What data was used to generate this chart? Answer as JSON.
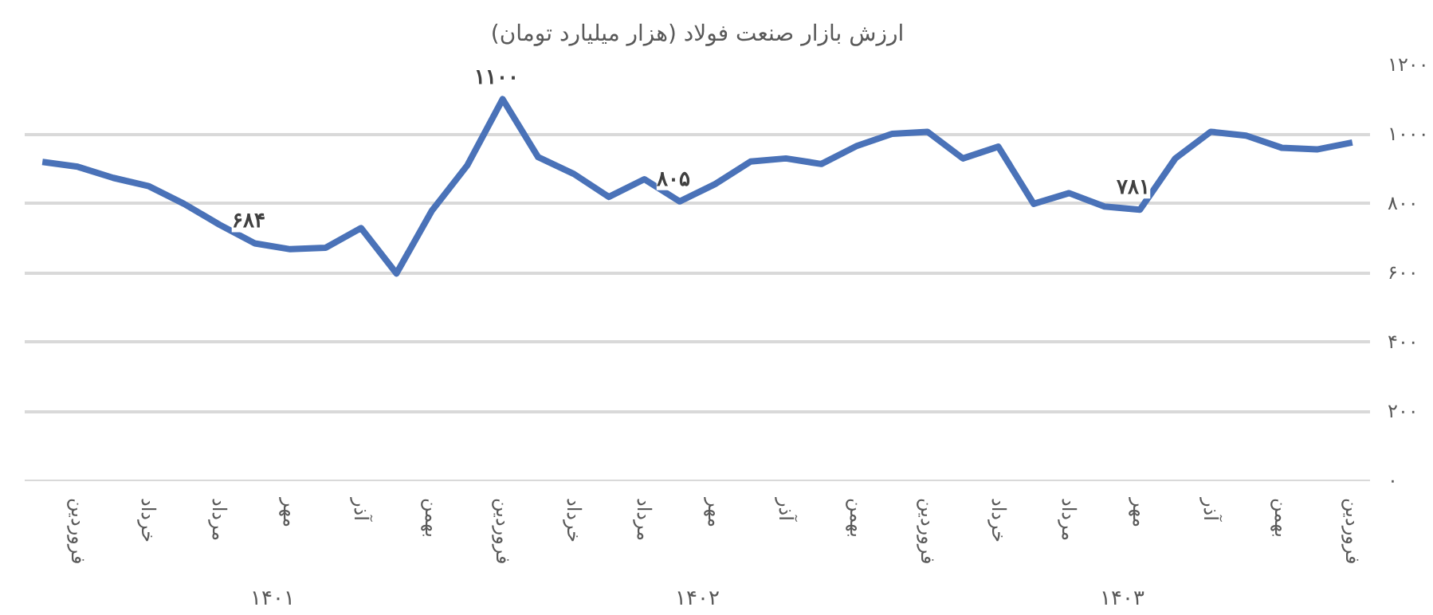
{
  "chart_data": {
    "type": "line",
    "title": "ارزش بازار صنعت فولاد (هزار میلیارد تومان)",
    "categories": [
      null,
      "فروردین",
      null,
      "خرداد",
      null,
      "مرداد",
      null,
      "مهر",
      null,
      "آذر",
      null,
      "بهمن",
      null,
      "فروردین",
      null,
      "خرداد",
      null,
      "مرداد",
      null,
      "مهر",
      null,
      "آذر",
      null,
      "بهمن",
      null,
      "فروردین",
      null,
      "خرداد",
      null,
      "مرداد",
      null,
      "مهر",
      null,
      "آذر",
      null,
      "بهمن",
      null,
      "فروردین"
    ],
    "values": [
      919,
      905,
      873,
      849,
      798,
      738,
      684,
      667,
      671,
      728,
      597,
      778,
      909,
      1100,
      933,
      885,
      818,
      869,
      805,
      855,
      920,
      929,
      913,
      965,
      1000,
      1006,
      929,
      963,
      798,
      829,
      790,
      781,
      929,
      1006,
      995,
      960,
      955,
      975
    ],
    "value_labels": [
      null,
      null,
      null,
      null,
      null,
      null,
      "۶۸۴",
      null,
      null,
      null,
      null,
      null,
      null,
      "۱۱۰۰",
      null,
      null,
      null,
      null,
      "۸۰۵",
      null,
      null,
      null,
      null,
      null,
      null,
      null,
      null,
      null,
      null,
      null,
      null,
      "۷۸۱",
      null,
      null,
      null,
      null,
      null,
      null
    ],
    "color": "#4a72b8",
    "line_style": "solid",
    "ylim": [
      0,
      1200
    ],
    "yticks": [
      {
        "value": 0,
        "label": "۰"
      },
      {
        "value": 200,
        "label": "۲۰۰"
      },
      {
        "value": 400,
        "label": "۴۰۰"
      },
      {
        "value": 600,
        "label": "۶۰۰"
      },
      {
        "value": 800,
        "label": "۸۰۰"
      },
      {
        "value": 1000,
        "label": "۱۰۰۰"
      },
      {
        "value": 1200,
        "label": "۱۲۰۰"
      }
    ],
    "annotations": [
      "۱۴۰۱",
      "۱۴۰۲",
      "۱۴۰۳"
    ],
    "grid": "y",
    "legend": false
  }
}
